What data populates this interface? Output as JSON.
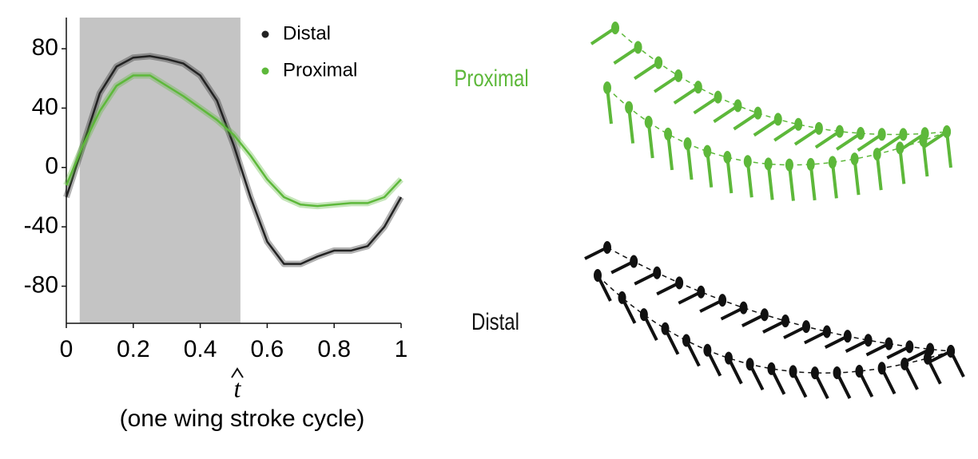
{
  "chart_data": {
    "type": "line",
    "x": [
      0,
      0.05,
      0.1,
      0.15,
      0.2,
      0.25,
      0.3,
      0.35,
      0.4,
      0.45,
      0.5,
      0.55,
      0.6,
      0.65,
      0.7,
      0.75,
      0.8,
      0.85,
      0.9,
      0.95,
      1
    ],
    "series": [
      {
        "name": "Distal",
        "color": "#222222",
        "values": [
          -20,
          15,
          50,
          68,
          74,
          75,
          73,
          70,
          62,
          45,
          15,
          -20,
          -50,
          -65,
          -65,
          -60,
          -56,
          -56,
          -53,
          -40,
          -20
        ]
      },
      {
        "name": "Proximal",
        "color": "#5db83a",
        "values": [
          -12,
          15,
          38,
          55,
          62,
          62,
          55,
          48,
          40,
          32,
          22,
          8,
          -8,
          -20,
          -25,
          -26,
          -25,
          -24,
          -24,
          -20,
          -8
        ]
      }
    ],
    "xlim": [
      0,
      1
    ],
    "xticks": [
      0,
      0.2,
      0.4,
      0.6,
      0.8,
      1
    ],
    "ylim": [
      -105,
      101
    ],
    "yticks": [
      -80,
      -40,
      0,
      40,
      80
    ],
    "shade": [
      0.04,
      0.52
    ],
    "xlabel_symbol": "t",
    "xlabel": "(one wing stroke cycle)",
    "legend": "upper right"
  },
  "diagrams": [
    {
      "label": "Proximal",
      "color": "#5db83a"
    },
    {
      "label": "Distal",
      "color": "#111111"
    }
  ]
}
